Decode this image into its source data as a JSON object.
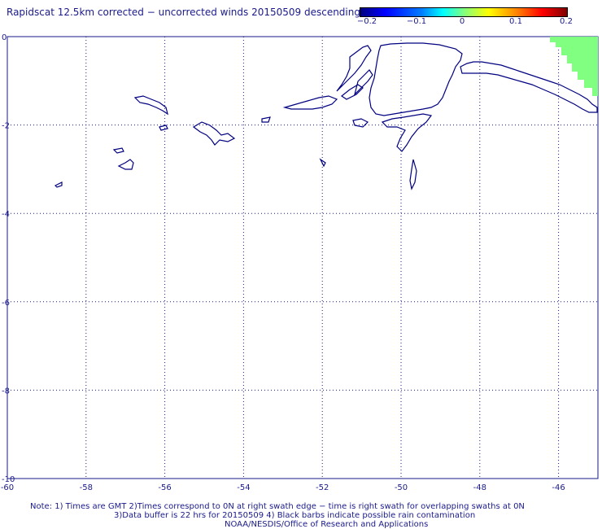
{
  "title": "Rapidscat 12.5km corrected − uncorrected winds 20150509 descending",
  "colorbar": {
    "labels": [
      "−0.2",
      "−0.1",
      "0",
      "0.1",
      "0.2"
    ],
    "values": [
      -0.2,
      -0.1,
      0,
      0.1,
      0.2
    ],
    "colors": [
      "#00007f",
      "#0000ff",
      "#00ffff",
      "#80ff80",
      "#ffff00",
      "#ff0000",
      "#800000"
    ]
  },
  "axes": {
    "x_ticks": [
      "-60",
      "-58",
      "-56",
      "-54",
      "-52",
      "-50",
      "-48",
      "-46"
    ],
    "x_values": [
      -60,
      -58,
      -56,
      -54,
      -52,
      -50,
      -48,
      -46
    ],
    "y_ticks": [
      "0",
      "-2",
      "-4",
      "-6",
      "-8",
      "-10"
    ],
    "y_values": [
      0,
      -2,
      -4,
      -6,
      -8,
      -10
    ],
    "lon_range": [
      -60,
      -45
    ],
    "lat_range": [
      -10,
      0
    ],
    "grid": true
  },
  "colors": {
    "text": "#1a1a8a",
    "coast": "#000080",
    "grid": "#1a1a8a",
    "data_fill": "#80ff80"
  },
  "notes": {
    "line1": "Note: 1) Times are GMT 2)Times correspond to 0N at right swath edge − time is right swath for overlapping swaths at 0N",
    "line2": "3)Data buffer is 22 hrs for 20150509 4) Black barbs indicate possible rain contamination",
    "line3": "NOAA/NESDIS/Office of Research and Applications"
  }
}
